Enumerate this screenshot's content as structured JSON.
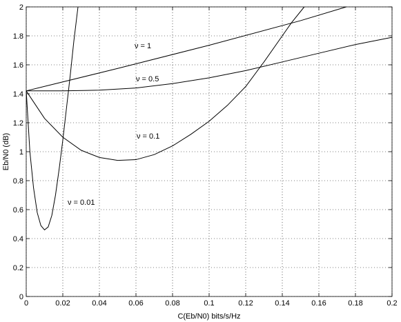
{
  "chart_data": {
    "type": "line",
    "x_label": "C(Eb/N0) bits/s/Hz",
    "y_label": "Eb/N0 (dB)",
    "xlim": [
      0,
      0.2
    ],
    "ylim": [
      0,
      2
    ],
    "xticks": [
      0,
      0.02,
      0.04,
      0.06,
      0.08,
      0.1,
      0.12,
      0.14,
      0.16,
      0.18,
      0.2
    ],
    "yticks": [
      0,
      0.2,
      0.4,
      0.6,
      0.8,
      1,
      1.2,
      1.4,
      1.6,
      1.8,
      2
    ],
    "grid": true,
    "series": [
      {
        "name": "ν = 1",
        "color": "#000000",
        "x": [
          0,
          0.05,
          0.1,
          0.15,
          0.175
        ],
        "values": [
          1.42,
          1.575,
          1.735,
          1.905,
          2.0
        ]
      },
      {
        "name": "ν = 0.5",
        "color": "#000000",
        "x": [
          0,
          0.02,
          0.04,
          0.06,
          0.08,
          0.1,
          0.12,
          0.14,
          0.16,
          0.18,
          0.2
        ],
        "values": [
          1.42,
          1.42,
          1.425,
          1.44,
          1.47,
          1.51,
          1.56,
          1.62,
          1.68,
          1.74,
          1.79
        ]
      },
      {
        "name": "ν = 0.1",
        "color": "#000000",
        "x": [
          0,
          0.01,
          0.02,
          0.03,
          0.04,
          0.05,
          0.06,
          0.07,
          0.08,
          0.09,
          0.1,
          0.11,
          0.12,
          0.13,
          0.14,
          0.145,
          0.152
        ],
        "values": [
          1.42,
          1.23,
          1.1,
          1.01,
          0.96,
          0.94,
          0.945,
          0.98,
          1.04,
          1.12,
          1.21,
          1.32,
          1.45,
          1.62,
          1.8,
          1.89,
          2.0
        ]
      },
      {
        "name": "ν = 0.01",
        "color": "#000000",
        "x": [
          0,
          0.002,
          0.004,
          0.006,
          0.008,
          0.01,
          0.012,
          0.014,
          0.016,
          0.018,
          0.02,
          0.022,
          0.024,
          0.026,
          0.0283
        ],
        "values": [
          1.42,
          1.0,
          0.75,
          0.58,
          0.49,
          0.46,
          0.48,
          0.56,
          0.7,
          0.88,
          1.08,
          1.3,
          1.52,
          1.76,
          2.0
        ]
      }
    ]
  }
}
